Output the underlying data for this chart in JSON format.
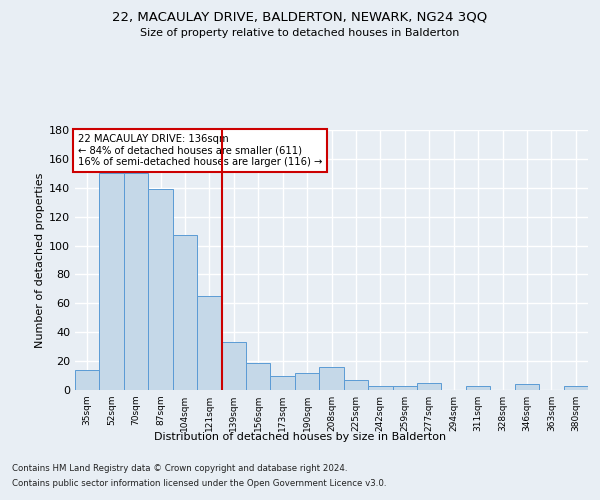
{
  "title1": "22, MACAULAY DRIVE, BALDERTON, NEWARK, NG24 3QQ",
  "title2": "Size of property relative to detached houses in Balderton",
  "xlabel": "Distribution of detached houses by size in Balderton",
  "ylabel": "Number of detached properties",
  "footnote1": "Contains HM Land Registry data © Crown copyright and database right 2024.",
  "footnote2": "Contains public sector information licensed under the Open Government Licence v3.0.",
  "categories": [
    "35sqm",
    "52sqm",
    "70sqm",
    "87sqm",
    "104sqm",
    "121sqm",
    "139sqm",
    "156sqm",
    "173sqm",
    "190sqm",
    "208sqm",
    "225sqm",
    "242sqm",
    "259sqm",
    "277sqm",
    "294sqm",
    "311sqm",
    "328sqm",
    "346sqm",
    "363sqm",
    "380sqm"
  ],
  "values": [
    14,
    150,
    150,
    139,
    107,
    65,
    33,
    19,
    10,
    12,
    16,
    7,
    3,
    3,
    5,
    0,
    3,
    0,
    4,
    0,
    3
  ],
  "bar_color": "#c5d8e8",
  "bar_edge_color": "#5b9bd5",
  "property_bin_index": 6,
  "annotation_title": "22 MACAULAY DRIVE: 136sqm",
  "annotation_line1": "← 84% of detached houses are smaller (611)",
  "annotation_line2": "16% of semi-detached houses are larger (116) →",
  "vline_color": "#cc0000",
  "annotation_box_color": "#cc0000",
  "ylim": [
    0,
    180
  ],
  "yticks": [
    0,
    20,
    40,
    60,
    80,
    100,
    120,
    140,
    160,
    180
  ],
  "background_color": "#e8eef4",
  "grid_color": "#ffffff"
}
